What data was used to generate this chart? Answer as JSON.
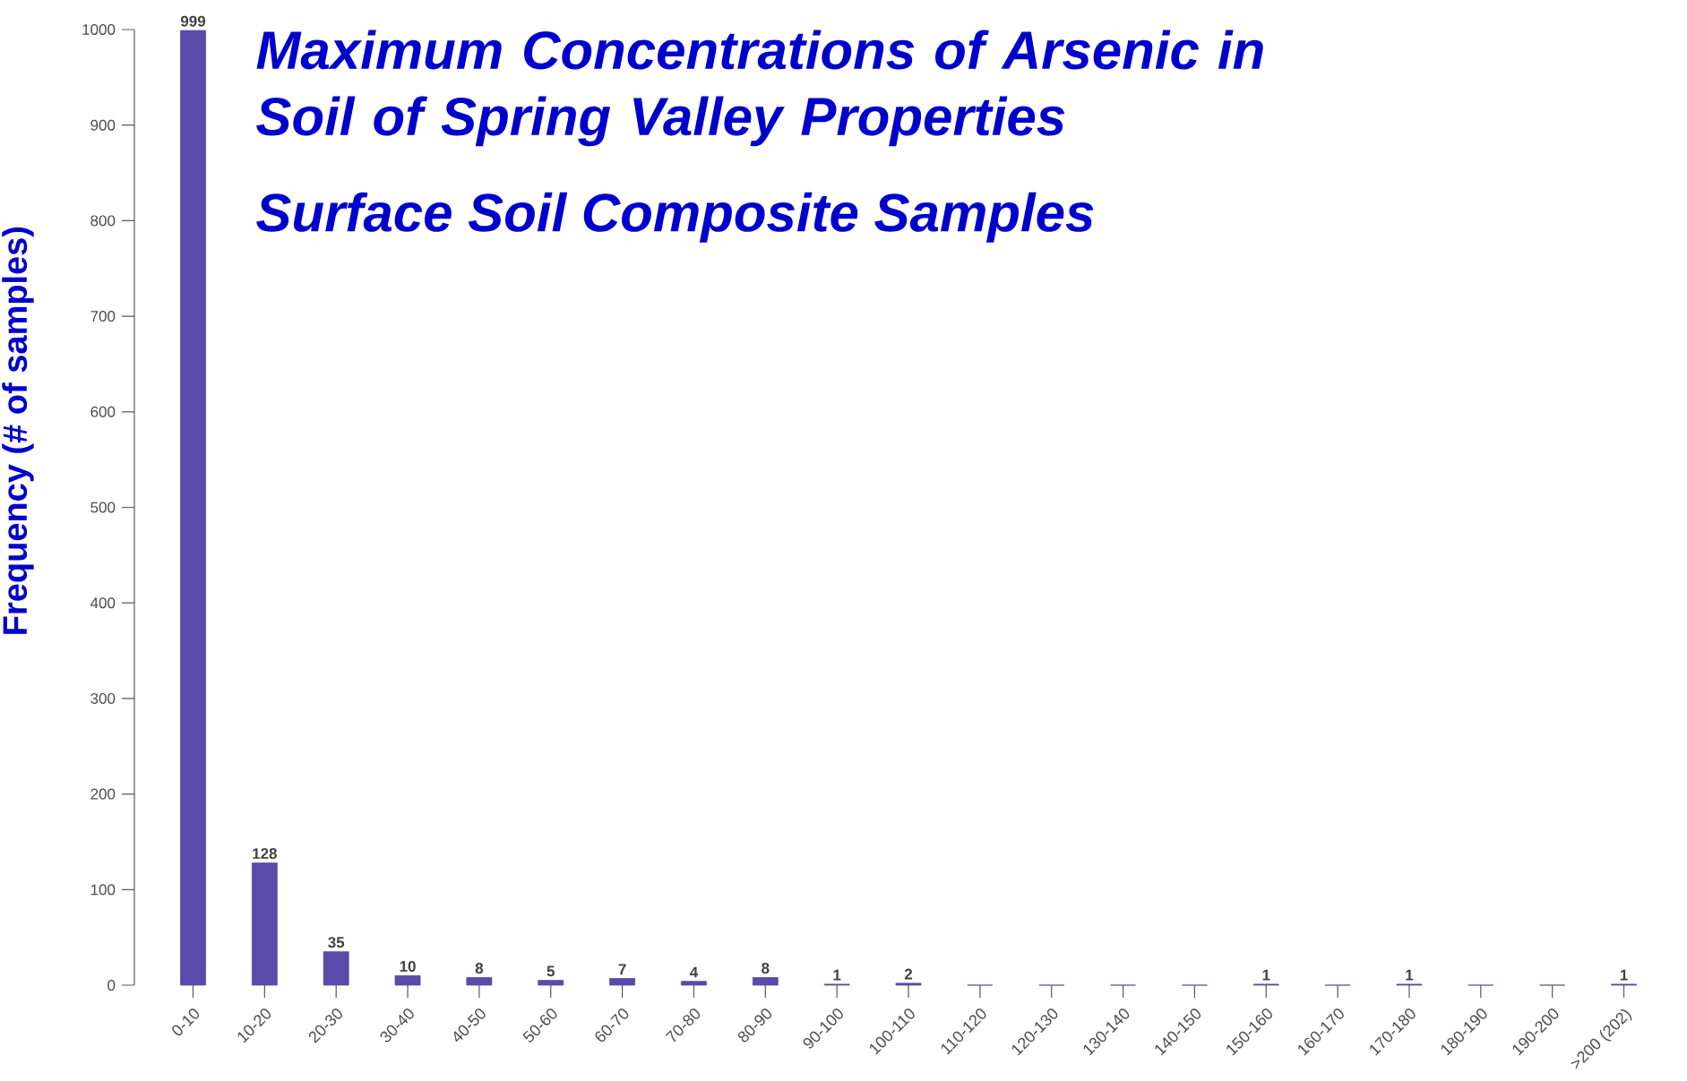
{
  "chart_data": {
    "type": "bar",
    "title": "Maximum Concentrations of Arsenic in Soil of Spring Valley Properties",
    "subtitle": "Surface Soil Composite Samples",
    "ylabel": "Frequency (# of samples)",
    "categories": [
      "0-10",
      "10-20",
      "20-30",
      "30-40",
      "40-50",
      "50-60",
      "60-70",
      "70-80",
      "80-90",
      "90-100",
      "100-110",
      "110-120",
      "120-130",
      "130-140",
      "140-150",
      "150-160",
      "160-170",
      "170-180",
      "180-190",
      "190-200",
      ">200 (202)"
    ],
    "values": [
      999,
      128,
      35,
      10,
      8,
      5,
      7,
      4,
      8,
      1,
      2,
      0,
      0,
      0,
      0,
      1,
      0,
      1,
      0,
      0,
      1
    ],
    "value_labels": [
      "999",
      "128",
      "35",
      "10",
      "8",
      "5",
      "7",
      "4",
      "8",
      "1",
      "2",
      null,
      null,
      null,
      null,
      "1",
      null,
      "1",
      null,
      null,
      "1"
    ],
    "color": "#5a4aaa",
    "ylim": [
      0,
      1000
    ],
    "yticks": [
      0,
      100,
      200,
      300,
      400,
      500,
      600,
      700,
      800,
      900,
      1000
    ],
    "grid": false
  }
}
